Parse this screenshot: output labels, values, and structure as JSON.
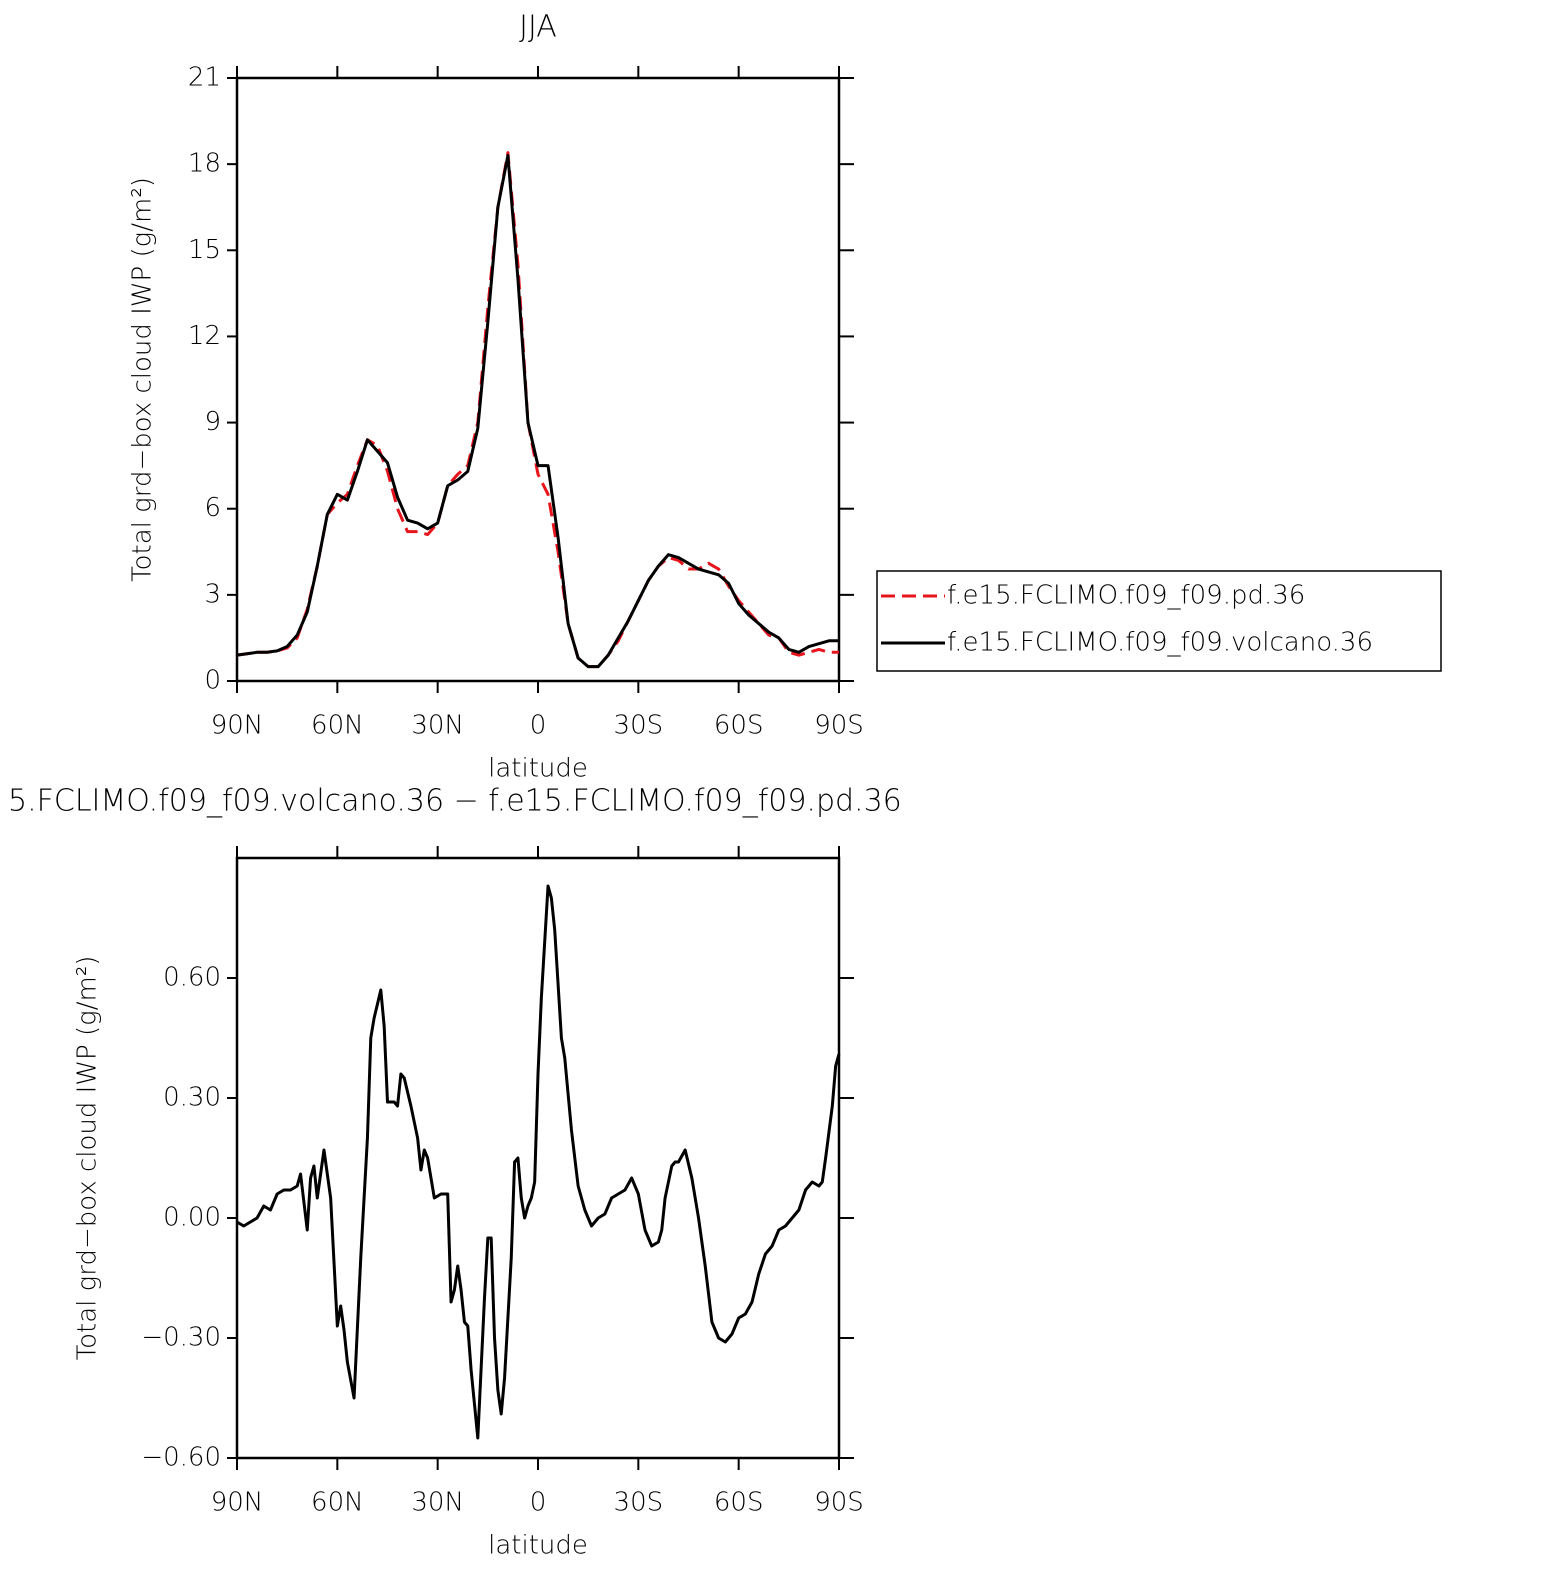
{
  "chart_data": [
    {
      "type": "line",
      "title": "JJA",
      "xlabel": "latitude",
      "ylabel": "Total grd−box cloud IWP (g/m²)",
      "x": [
        90,
        87,
        84,
        81,
        78,
        75,
        72,
        69,
        66,
        63,
        60,
        57,
        54,
        51,
        48,
        45,
        42,
        39,
        36,
        33,
        30,
        27,
        24,
        21,
        18,
        15,
        12,
        9,
        6,
        3,
        0,
        -3,
        -6,
        -9,
        -12,
        -15,
        -18,
        -21,
        -24,
        -27,
        -30,
        -33,
        -36,
        -39,
        -42,
        -45,
        -48,
        -51,
        -54,
        -57,
        -60,
        -63,
        -66,
        -69,
        -72,
        -75,
        -78,
        -81,
        -84,
        -87,
        -90
      ],
      "series": [
        {
          "name": "f.e15.FCLIMO.f09_f09.pd.36",
          "color": "#e8141c",
          "dashed": true,
          "values": [
            0.9,
            0.95,
            1.0,
            1.0,
            1.05,
            1.15,
            1.5,
            2.5,
            4.0,
            5.8,
            6.2,
            6.5,
            7.5,
            8.4,
            8.2,
            7.3,
            6.0,
            5.2,
            5.2,
            5.1,
            5.5,
            6.8,
            7.2,
            7.5,
            9.0,
            13.0,
            16.5,
            18.4,
            14.5,
            9.0,
            7.2,
            6.5,
            4.5,
            2.0,
            0.8,
            0.5,
            0.5,
            0.9,
            1.4,
            2.1,
            2.8,
            3.5,
            4.0,
            4.3,
            4.2,
            3.9,
            3.9,
            4.1,
            3.9,
            3.3,
            2.8,
            2.4,
            2.0,
            1.6,
            1.5,
            1.0,
            0.9,
            1.0,
            1.1,
            1.0,
            1.0
          ]
        },
        {
          "name": "f.e15.FCLIMO.f09_f09.volcano.36",
          "color": "#000000",
          "dashed": false,
          "values": [
            0.9,
            0.95,
            1.0,
            1.0,
            1.05,
            1.2,
            1.6,
            2.4,
            4.0,
            5.8,
            6.5,
            6.3,
            7.3,
            8.4,
            8.0,
            7.6,
            6.4,
            5.6,
            5.5,
            5.3,
            5.5,
            6.8,
            7.0,
            7.3,
            8.8,
            12.5,
            16.5,
            18.3,
            14.0,
            9.0,
            7.5,
            7.5,
            5.0,
            2.0,
            0.8,
            0.5,
            0.5,
            0.9,
            1.5,
            2.1,
            2.8,
            3.5,
            4.0,
            4.4,
            4.3,
            4.1,
            3.9,
            3.8,
            3.7,
            3.4,
            2.7,
            2.3,
            2.0,
            1.7,
            1.5,
            1.1,
            1.0,
            1.2,
            1.3,
            1.4,
            1.4
          ]
        }
      ],
      "xlim": [
        90,
        -90
      ],
      "xticks": [
        {
          "value": 90,
          "label": "90N"
        },
        {
          "value": 60,
          "label": "60N"
        },
        {
          "value": 30,
          "label": "30N"
        },
        0,
        {
          "value": -30,
          "label": "30S"
        },
        {
          "value": -60,
          "label": "60S"
        },
        {
          "value": -90,
          "label": "90S"
        }
      ],
      "ylim": [
        0,
        21
      ],
      "yticks": [
        0,
        3,
        6,
        9,
        12,
        15,
        18,
        21
      ],
      "legend": "right"
    },
    {
      "type": "line",
      "title": "5.FCLIMO.f09_f09.volcano.36 − f.e15.FCLIMO.f09_f09.pd.36",
      "xlabel": "latitude",
      "ylabel": "Total grd−box cloud IWP (g/m²)",
      "x": [
        90,
        88,
        86,
        84,
        82,
        80,
        78,
        76,
        74,
        72,
        71,
        69,
        68,
        67,
        66,
        64,
        62,
        60,
        59,
        58,
        57,
        55,
        53,
        51,
        50,
        49,
        47,
        46,
        45,
        43,
        42,
        41,
        40,
        38,
        37,
        36,
        35,
        34,
        33,
        32,
        31,
        29,
        27,
        26,
        25,
        24,
        23,
        22,
        21,
        20,
        18,
        16,
        15,
        14,
        13,
        12,
        11,
        10,
        8,
        7,
        6,
        5,
        4,
        3,
        2,
        1,
        0,
        -1,
        -3,
        -4,
        -5,
        -7,
        -8,
        -10,
        -12,
        -14,
        -16,
        -18,
        -20,
        -22,
        -24,
        -26,
        -28,
        -30,
        -32,
        -34,
        -36,
        -37,
        -38,
        -40,
        -41,
        -42,
        -44,
        -46,
        -48,
        -50,
        -52,
        -54,
        -56,
        -58,
        -60,
        -62,
        -64,
        -66,
        -68,
        -70,
        -72,
        -74,
        -76,
        -78,
        -80,
        -82,
        -84,
        -85,
        -86,
        -88,
        -89,
        -90
      ],
      "series": [
        {
          "name": null,
          "color": "#000000",
          "dashed": false,
          "values": [
            -0.01,
            -0.02,
            -0.01,
            0.0,
            0.03,
            0.02,
            0.06,
            0.07,
            0.07,
            0.08,
            0.11,
            -0.03,
            0.1,
            0.13,
            0.05,
            0.17,
            0.05,
            -0.27,
            -0.22,
            -0.28,
            -0.36,
            -0.45,
            -0.1,
            0.2,
            0.45,
            0.5,
            0.57,
            0.48,
            0.29,
            0.29,
            0.28,
            0.36,
            0.35,
            0.28,
            0.24,
            0.2,
            0.12,
            0.17,
            0.15,
            0.1,
            0.05,
            0.06,
            0.06,
            -0.21,
            -0.18,
            -0.12,
            -0.18,
            -0.26,
            -0.27,
            -0.38,
            -0.55,
            -0.2,
            -0.05,
            -0.05,
            -0.3,
            -0.43,
            -0.49,
            -0.4,
            -0.1,
            0.14,
            0.15,
            0.05,
            0.0,
            0.03,
            0.05,
            0.09,
            0.36,
            0.55,
            0.83,
            0.8,
            0.72,
            0.45,
            0.4,
            0.22,
            0.08,
            0.02,
            -0.02,
            0.0,
            0.01,
            0.05,
            0.06,
            0.07,
            0.1,
            0.06,
            -0.03,
            -0.07,
            -0.06,
            -0.03,
            0.05,
            0.13,
            0.14,
            0.14,
            0.17,
            0.1,
            0.0,
            -0.12,
            -0.26,
            -0.3,
            -0.31,
            -0.29,
            -0.25,
            -0.24,
            -0.21,
            -0.14,
            -0.09,
            -0.07,
            -0.03,
            -0.02,
            0.0,
            0.02,
            0.07,
            0.09,
            0.08,
            0.09,
            0.15,
            0.28,
            0.38,
            0.41
          ]
        }
      ],
      "xlim": [
        90,
        -90
      ],
      "xticks": [
        {
          "value": 90,
          "label": "90N"
        },
        {
          "value": 60,
          "label": "60N"
        },
        {
          "value": 30,
          "label": "30N"
        },
        0,
        {
          "value": -30,
          "label": "30S"
        },
        {
          "value": -60,
          "label": "60S"
        },
        {
          "value": -90,
          "label": "90S"
        }
      ],
      "ylim": [
        -0.6,
        0.9
      ],
      "yticks": [
        {
          "value": -0.6,
          "label": "−0.60"
        },
        {
          "value": -0.3,
          "label": "−0.30"
        },
        {
          "value": 0,
          "label": "0.00"
        },
        {
          "value": 0.3,
          "label": "0.30"
        },
        {
          "value": 0.6,
          "label": "0.60"
        }
      ]
    }
  ]
}
